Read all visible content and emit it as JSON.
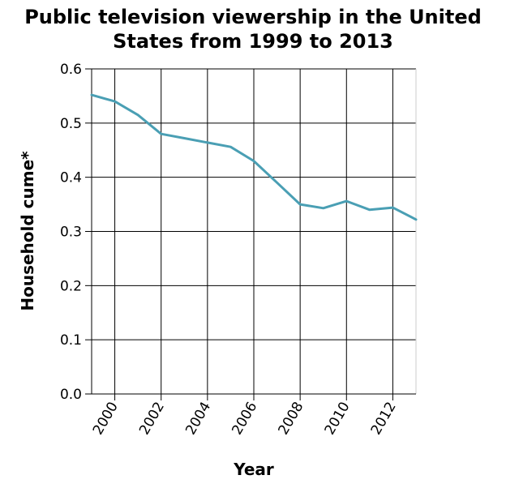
{
  "chart_data": {
    "type": "line",
    "title_lines": [
      "Public television viewership in the United",
      "States from 1999 to 2013"
    ],
    "xlabel": "Year",
    "ylabel": "Household cume*",
    "x": [
      1999,
      2000,
      2001,
      2002,
      2003,
      2004,
      2005,
      2006,
      2007,
      2008,
      2009,
      2010,
      2011,
      2012,
      2013
    ],
    "series": [
      {
        "values": [
          0.552,
          0.54,
          0.515,
          0.48,
          0.472,
          0.464,
          0.456,
          0.43,
          0.39,
          0.35,
          0.343,
          0.356,
          0.34,
          0.344,
          0.322
        ]
      }
    ],
    "xlim": [
      1999,
      2013
    ],
    "ylim": [
      0.0,
      0.6
    ],
    "xticks": [
      2000,
      2002,
      2004,
      2006,
      2008,
      2010,
      2012
    ],
    "xtick_labels": [
      "2000",
      "2002",
      "2004",
      "2006",
      "2008",
      "2010",
      "2012"
    ],
    "yticks": [
      0.0,
      0.1,
      0.2,
      0.3,
      0.4,
      0.5,
      0.6
    ],
    "ytick_labels": [
      "0.0",
      "0.1",
      "0.2",
      "0.3",
      "0.4",
      "0.5",
      "0.6"
    ],
    "grid": true,
    "line_color": "#4a9fb4",
    "grid_color": "#000000"
  }
}
